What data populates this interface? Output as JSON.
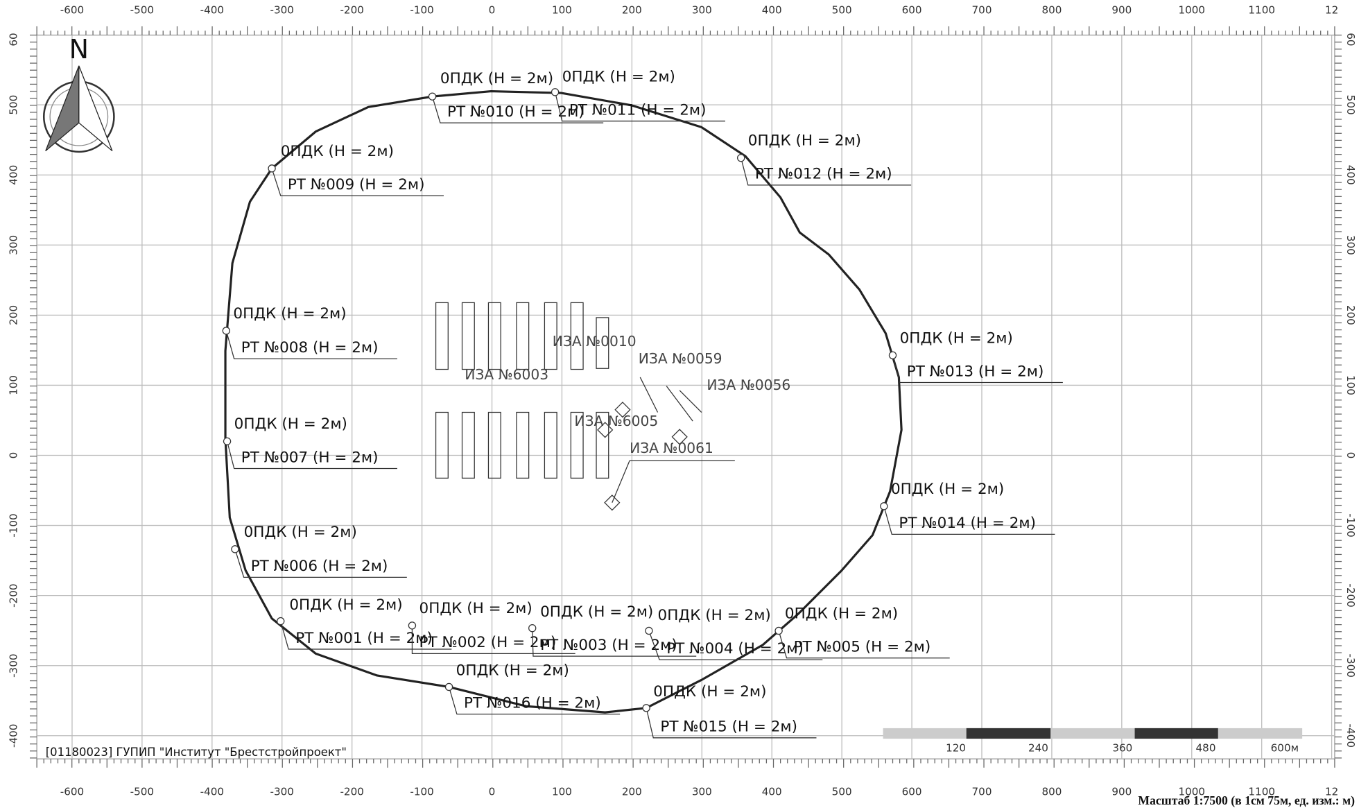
{
  "axes": {
    "xticks": [
      -600,
      -500,
      -400,
      -300,
      -200,
      -100,
      0,
      100,
      200,
      300,
      400,
      500,
      600,
      700,
      800,
      900,
      1000,
      1100,
      {
        "value": 1200,
        "label": "12"
      }
    ],
    "yticks": [
      {
        "value": 600,
        "label": "60"
      },
      500,
      400,
      300,
      200,
      100,
      0,
      -100,
      -200,
      -300,
      -400
    ]
  },
  "north": "N",
  "receptors": [
    {
      "pdk": "0ПДК (Н = 2м)",
      "rt": "РТ №001 (Н = 2м)"
    },
    {
      "pdk": "0ПДК (Н = 2м)",
      "rt": "РТ №002 (Н = 2м)"
    },
    {
      "pdk": "0ПДК (Н = 2м)",
      "rt": "РТ №003 (Н = 2м)"
    },
    {
      "pdk": "0ПДК (Н = 2м)",
      "rt": "РТ №004 (Н = 2м)"
    },
    {
      "pdk": "0ПДК (Н = 2м)",
      "rt": "РТ №005 (Н = 2м)"
    },
    {
      "pdk": "0ПДК (Н = 2м)",
      "rt": "РТ №006 (Н = 2м)"
    },
    {
      "pdk": "0ПДК (Н = 2м)",
      "rt": "РТ №007 (Н = 2м)"
    },
    {
      "pdk": "0ПДК (Н = 2м)",
      "rt": "РТ №008 (Н = 2м)"
    },
    {
      "pdk": "0ПДК (Н = 2м)",
      "rt": "РТ №009 (Н = 2м)"
    },
    {
      "pdk": "0ПДК (Н = 2м)",
      "rt": "РТ №010 (Н = 2м)"
    },
    {
      "pdk": "0ПДК (Н = 2м)",
      "rt": "РТ №011 (Н = 2м)"
    },
    {
      "pdk": "0ПДК (Н = 2м)",
      "rt": "РТ №012 (Н = 2м)"
    },
    {
      "pdk": "0ПДК (Н = 2м)",
      "rt": "РТ №013 (Н = 2м)"
    },
    {
      "pdk": "0ПДК (Н = 2м)",
      "rt": "РТ №014 (Н = 2м)"
    },
    {
      "pdk": "0ПДК (Н = 2м)",
      "rt": "РТ №015 (Н = 2м)"
    },
    {
      "pdk": "0ПДК (Н = 2м)",
      "rt": "РТ №016 (Н = 2м)"
    }
  ],
  "sources": [
    "ИЗА №6003",
    "ИЗА №0010",
    "ИЗА №0059",
    "ИЗА №0056",
    "ИЗА №6005",
    "ИЗА №0061"
  ],
  "scale_bar": {
    "labels": [
      "120",
      "240",
      "360",
      "480",
      "600м"
    ]
  },
  "footer": "[01180023] ГУПИП \"Институт \"Брестстройпроект\"",
  "scale_caption": "Масштаб 1:7500 (в 1см 75м, ед. изм.: м)"
}
